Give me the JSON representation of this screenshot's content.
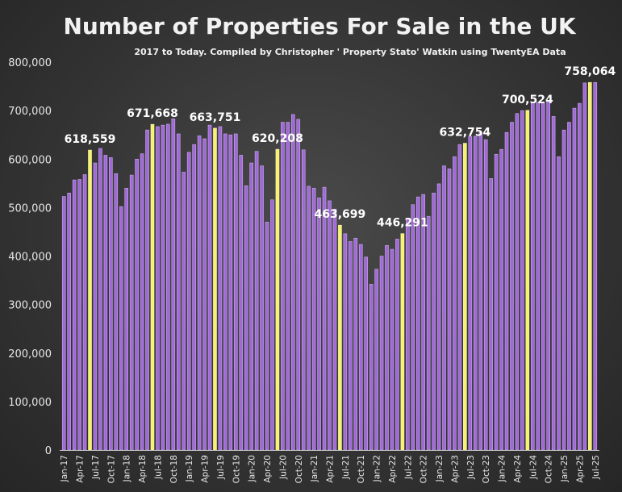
{
  "chart_data": {
    "type": "bar",
    "title": "Number of Properties For Sale in the UK",
    "subtitle": "2017 to Today. Compiled by Christopher ' Property Stato' Watkin using TwentyEA Data",
    "xlabel": "",
    "ylabel": "",
    "ylim": [
      0,
      800000
    ],
    "yticks": [
      0,
      100000,
      200000,
      300000,
      400000,
      500000,
      600000,
      700000,
      800000
    ],
    "ytick_labels": [
      "0",
      "100,000",
      "200,000",
      "300,000",
      "400,000",
      "500,000",
      "600,000",
      "700,000",
      "800,000"
    ],
    "grid": false,
    "categories": [
      "Jan-17",
      "Feb-17",
      "Mar-17",
      "Apr-17",
      "May-17",
      "Jun-17",
      "Jul-17",
      "Aug-17",
      "Sep-17",
      "Oct-17",
      "Nov-17",
      "Dec-17",
      "Jan-18",
      "Feb-18",
      "Mar-18",
      "Apr-18",
      "May-18",
      "Jun-18",
      "Jul-18",
      "Aug-18",
      "Sep-18",
      "Oct-18",
      "Nov-18",
      "Dec-18",
      "Jan-19",
      "Feb-19",
      "Mar-19",
      "Apr-19",
      "May-19",
      "Jun-19",
      "Jul-19",
      "Aug-19",
      "Sep-19",
      "Oct-19",
      "Nov-19",
      "Dec-19",
      "Jan-20",
      "Feb-20",
      "Mar-20",
      "Apr-20",
      "May-20",
      "Jun-20",
      "Jul-20",
      "Aug-20",
      "Sep-20",
      "Oct-20",
      "Nov-20",
      "Dec-20",
      "Jan-21",
      "Feb-21",
      "Mar-21",
      "Apr-21",
      "May-21",
      "Jun-21",
      "Jul-21",
      "Aug-21",
      "Sep-21",
      "Oct-21",
      "Nov-21",
      "Dec-21",
      "Jan-22",
      "Feb-22",
      "Mar-22",
      "Apr-22",
      "May-22",
      "Jun-22",
      "Jul-22",
      "Aug-22",
      "Sep-22",
      "Oct-22",
      "Nov-22",
      "Dec-22",
      "Jan-23",
      "Feb-23",
      "Mar-23",
      "Apr-23",
      "May-23",
      "Jun-23",
      "Jul-23",
      "Aug-23",
      "Sep-23",
      "Oct-23",
      "Nov-23",
      "Dec-23",
      "Jan-24",
      "Feb-24",
      "Mar-24",
      "Apr-24",
      "May-24",
      "Jun-24",
      "Jul-24",
      "Aug-24",
      "Sep-24",
      "Oct-24",
      "Nov-24",
      "Dec-24",
      "Jan-25",
      "Feb-25",
      "Mar-25",
      "Apr-25",
      "May-25",
      "Jun-25",
      "Jul-25"
    ],
    "xtick_labels": [
      "Jan-17",
      "Apr-17",
      "Jul-17",
      "Oct-17",
      "Jan-18",
      "Apr-18",
      "Jul-18",
      "Oct-18",
      "Jan-19",
      "Apr-19",
      "Jul-19",
      "Oct-19",
      "Jan-20",
      "Apr-20",
      "Jul-20",
      "Oct-20",
      "Jan-21",
      "Apr-21",
      "Jul-21",
      "Oct-21",
      "Jan-22",
      "Apr-22",
      "Jul-22",
      "Oct-22",
      "Jan-23",
      "Apr-23",
      "Jul-23",
      "Oct-23",
      "Jan-24",
      "Apr-24",
      "Jul-24",
      "Oct-24",
      "Jan-25",
      "Apr-25",
      "Jul-25"
    ],
    "values": [
      523000,
      530000,
      557000,
      558000,
      568000,
      618559,
      592000,
      622000,
      608000,
      603000,
      570000,
      502000,
      540000,
      567000,
      600000,
      611000,
      660000,
      671668,
      667000,
      670000,
      672000,
      683000,
      652000,
      573000,
      614000,
      630000,
      648000,
      642000,
      670000,
      663751,
      667000,
      652000,
      650000,
      652000,
      608000,
      545000,
      592000,
      616000,
      586000,
      470000,
      516000,
      620208,
      676000,
      676000,
      692000,
      682000,
      619000,
      544000,
      540000,
      520000,
      542000,
      514000,
      497000,
      463699,
      446000,
      430000,
      437000,
      424000,
      398000,
      342000,
      373000,
      400000,
      422000,
      414000,
      435000,
      446291,
      478000,
      506000,
      522000,
      527000,
      482000,
      530000,
      549000,
      586000,
      580000,
      605000,
      630000,
      632754,
      647000,
      647000,
      655000,
      640000,
      560000,
      610000,
      620000,
      655000,
      676000,
      694000,
      700000,
      700524,
      716000,
      717000,
      716000,
      720000,
      688000,
      605000,
      660000,
      676000,
      705000,
      715000,
      757000,
      758064,
      758064
    ],
    "highlighted_categories": [
      "Jun-17",
      "Jun-18",
      "Jun-19",
      "Jun-20",
      "Jun-21",
      "Jun-22",
      "Jun-23",
      "Jun-24",
      "Jun-25"
    ],
    "annotations": [
      {
        "category": "Jun-17",
        "text": "618,559"
      },
      {
        "category": "Jun-18",
        "text": "671,668"
      },
      {
        "category": "Jun-19",
        "text": "663,751"
      },
      {
        "category": "Jun-20",
        "text": "620,208"
      },
      {
        "category": "Jun-21",
        "text": "463,699"
      },
      {
        "category": "Jun-22",
        "text": "446,291"
      },
      {
        "category": "Jun-23",
        "text": "632,754"
      },
      {
        "category": "Jun-24",
        "text": "700,524"
      },
      {
        "category": "Jun-25",
        "text": "758,064"
      }
    ],
    "colors": {
      "bar": "#a06ad6",
      "bar_edge": "#c9a6f0",
      "highlight": "#f7f26c",
      "background": "#3a3a3a",
      "axis": "#bfbfbf",
      "text": "#f2f2f2"
    }
  }
}
